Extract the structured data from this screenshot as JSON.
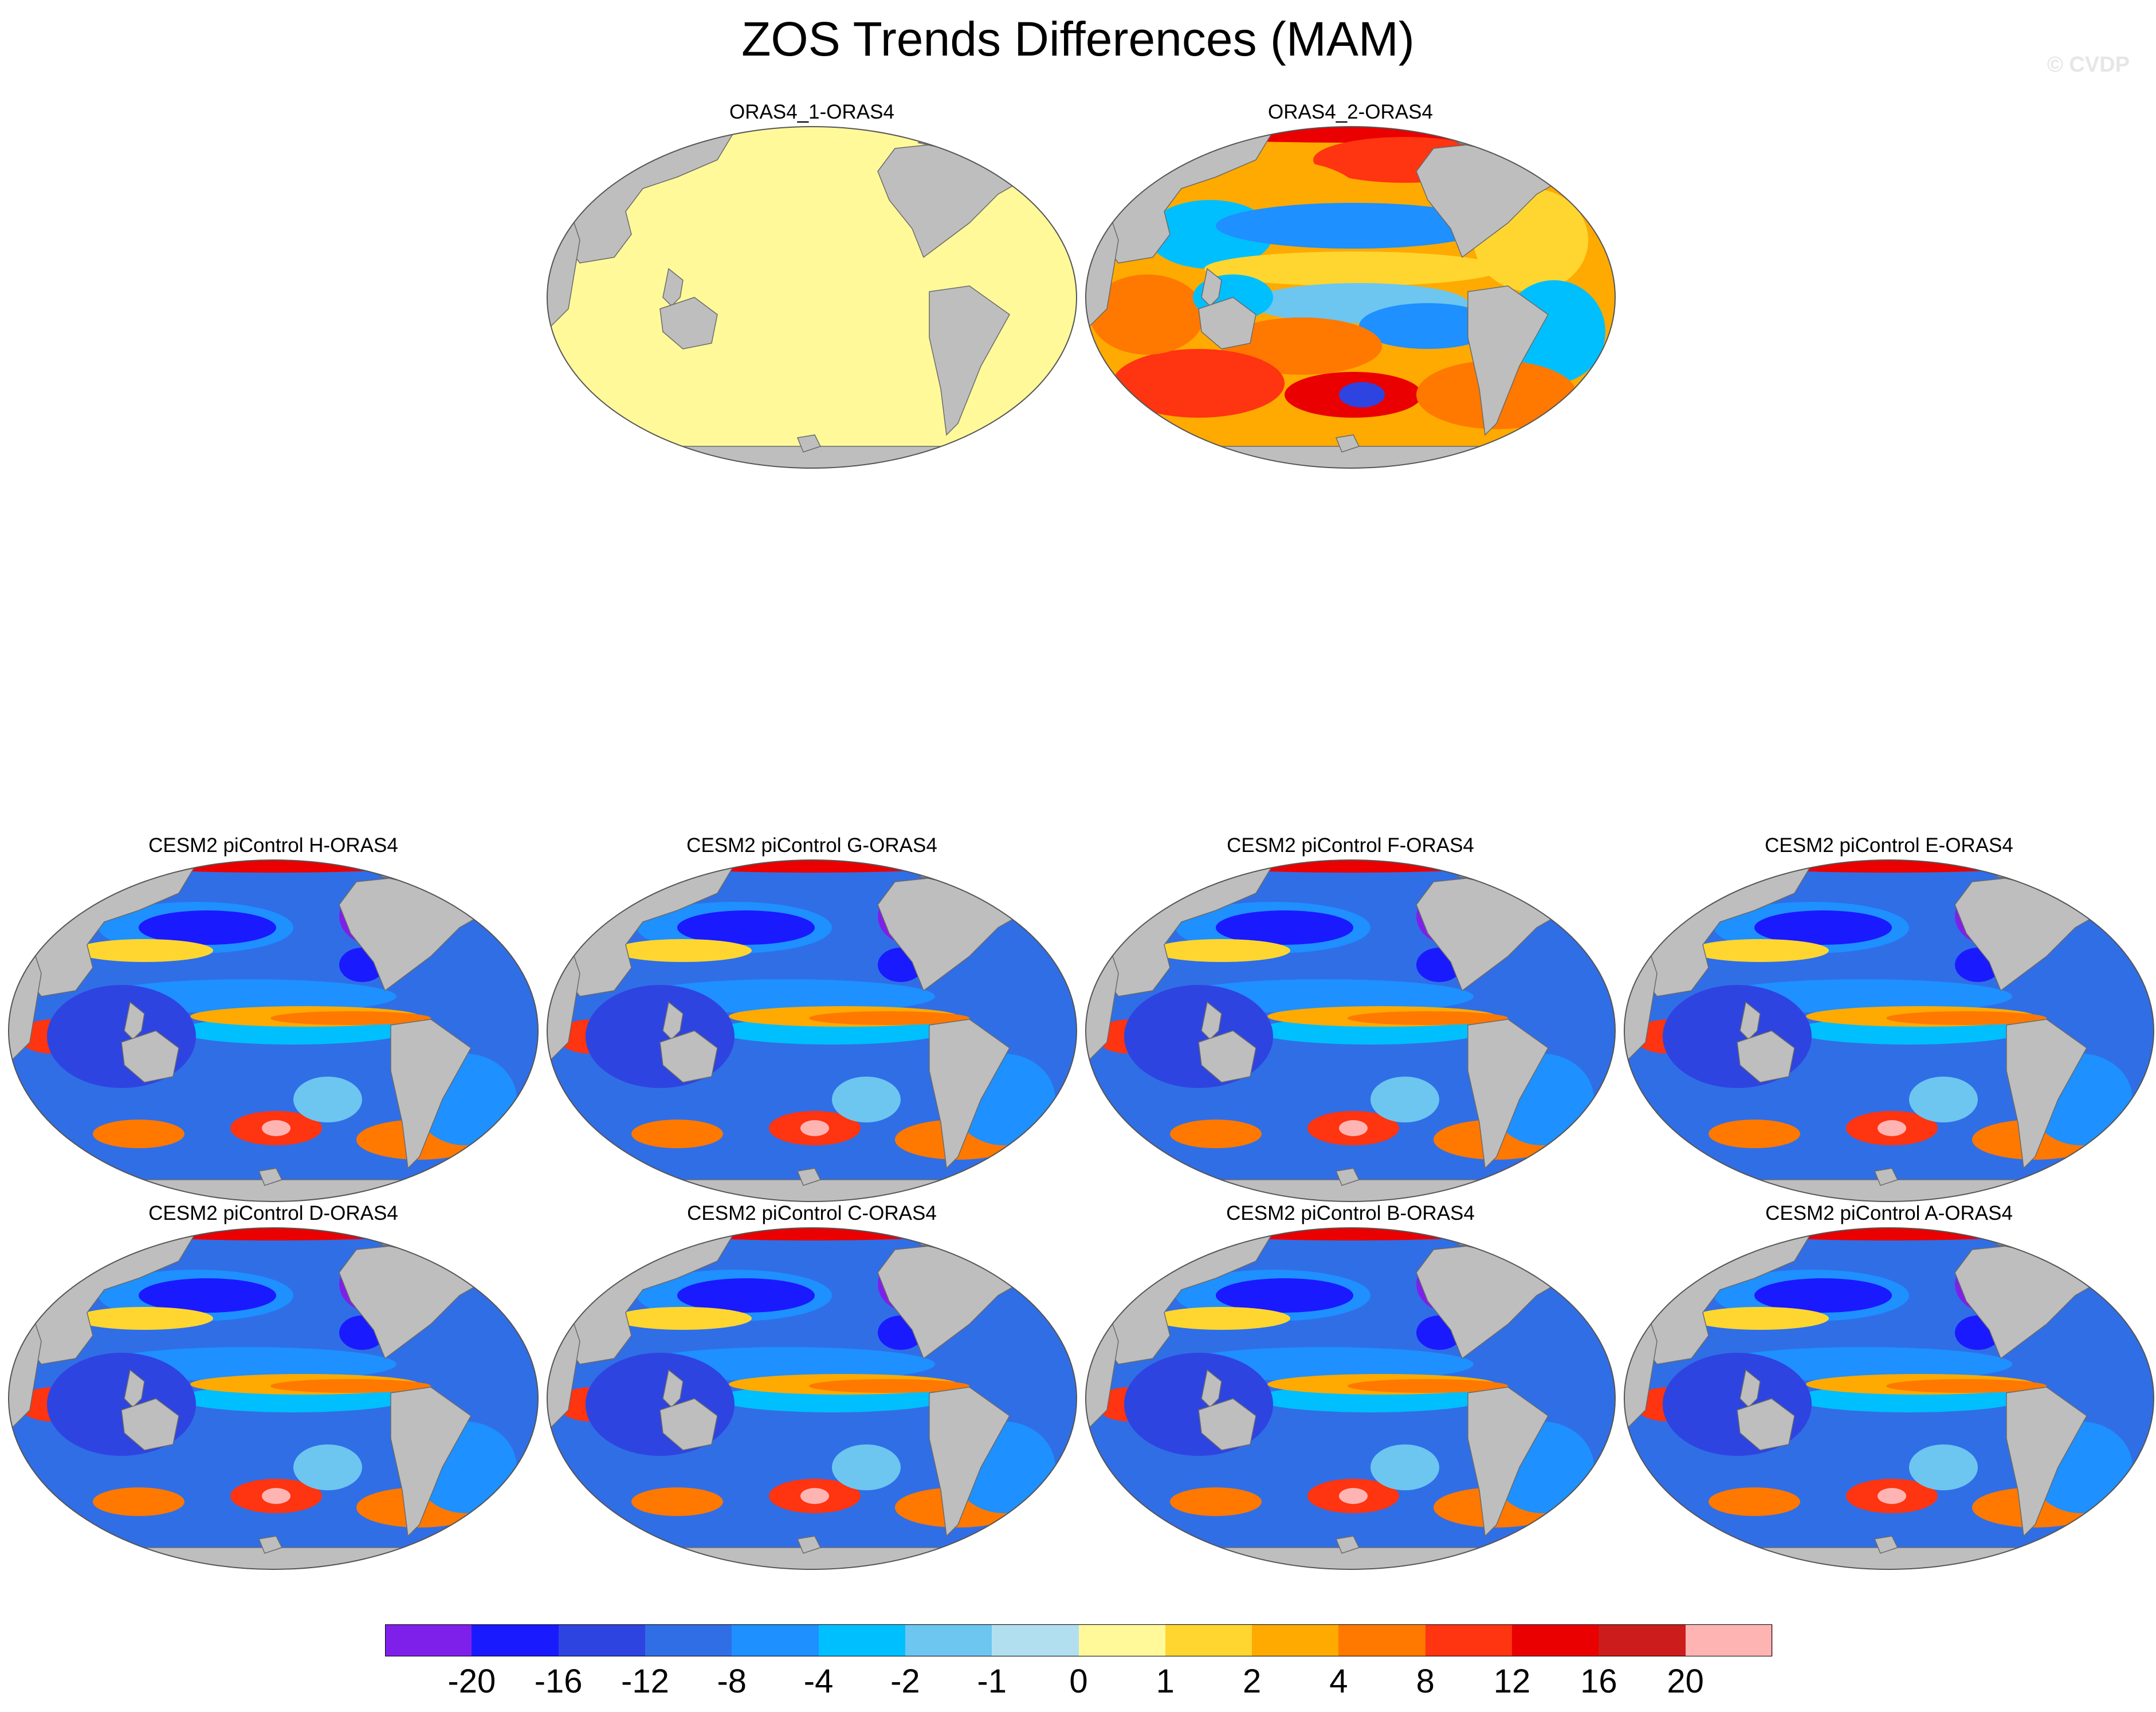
{
  "title": "ZOS Trends Differences (MAM)",
  "credit": "© CVDP",
  "panels": [
    {
      "title": "ORAS4_1-ORAS4",
      "pattern": "uniform"
    },
    {
      "title": "ORAS4_2-ORAS4",
      "pattern": "warm"
    },
    {
      "title": "CESM2 piControl H-ORAS4",
      "pattern": "cool"
    },
    {
      "title": "CESM2 piControl G-ORAS4",
      "pattern": "cool"
    },
    {
      "title": "CESM2 piControl F-ORAS4",
      "pattern": "cool"
    },
    {
      "title": "CESM2 piControl E-ORAS4",
      "pattern": "cool"
    },
    {
      "title": "CESM2 piControl D-ORAS4",
      "pattern": "cool"
    },
    {
      "title": "CESM2 piControl C-ORAS4",
      "pattern": "cool"
    },
    {
      "title": "CESM2 piControl B-ORAS4",
      "pattern": "cool"
    },
    {
      "title": "CESM2 piControl A-ORAS4",
      "pattern": "cool"
    }
  ],
  "colorbar": {
    "colors": [
      "#7f20ea",
      "#1a1aff",
      "#2e44e0",
      "#306ee6",
      "#1e90ff",
      "#00bfff",
      "#6cc6f0",
      "#b2dff0",
      "#fff99a",
      "#ffd630",
      "#ffaa00",
      "#ff7800",
      "#ff3410",
      "#ea0000",
      "#cc1c1c",
      "#ffb4b4"
    ],
    "labels": [
      "-20",
      "-16",
      "-12",
      "-8",
      "-4",
      "-2",
      "-1",
      "0",
      "1",
      "2",
      "4",
      "8",
      "12",
      "16",
      "20"
    ]
  },
  "colors": {
    "land": "#bebebe",
    "neutral": "#fff99a"
  }
}
